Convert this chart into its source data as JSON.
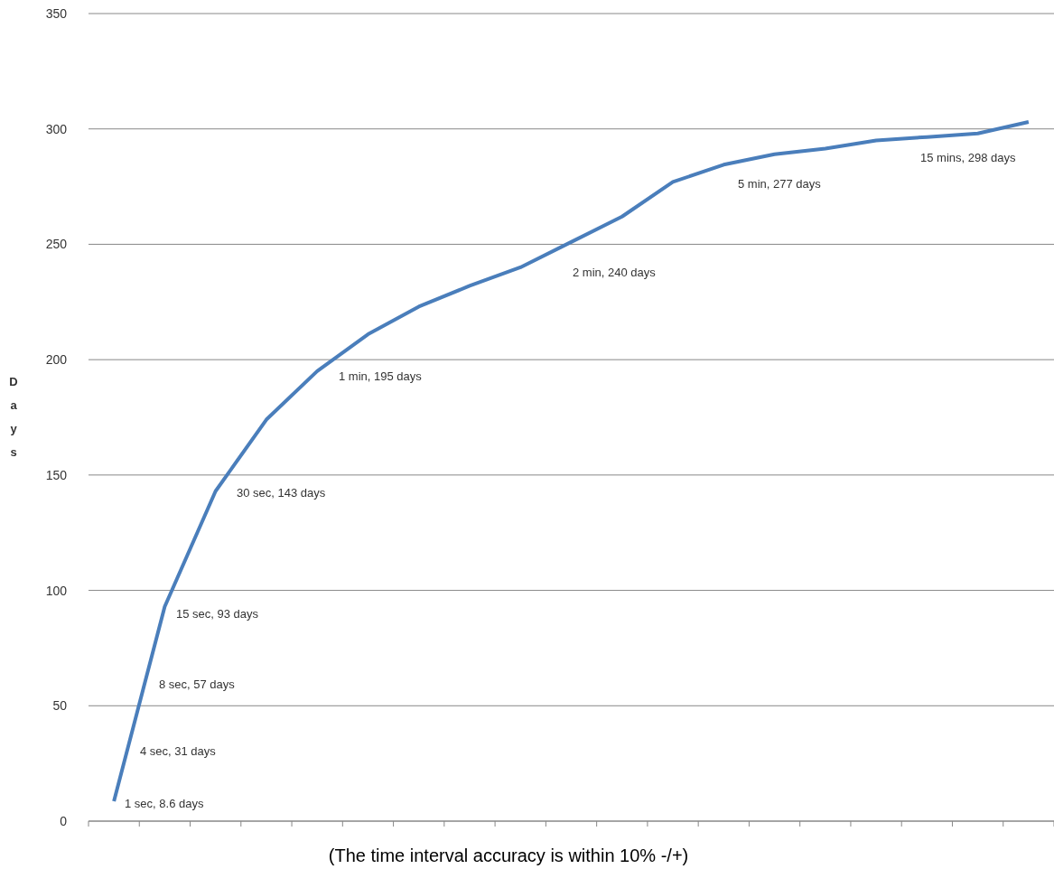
{
  "chart_data": {
    "type": "line",
    "ylabel": "Days",
    "categories": [
      null,
      null,
      null,
      null,
      null,
      null,
      null,
      null,
      null,
      null,
      null,
      null,
      null,
      null,
      null,
      null,
      null,
      null,
      null
    ],
    "series": [
      {
        "color": "#4a7ebb",
        "values": [
          8.6,
          93,
          143,
          174,
          195,
          211,
          223,
          232,
          240,
          251,
          262,
          277,
          284.5,
          289,
          291.5,
          295,
          296.5,
          298,
          303
        ]
      }
    ],
    "ylim": [
      0,
      350
    ],
    "yticks": [
      0,
      50,
      100,
      150,
      200,
      250,
      300,
      350
    ],
    "grid": "y",
    "legend": false,
    "marker": "none",
    "line_style": "solid",
    "annotations": [
      "1 sec, 8.6 days",
      "4 sec, 31 days",
      "8 sec, 57 days",
      "15 sec, 93 days",
      "30 sec, 143 days",
      "1 min, 195 days",
      "2 min, 240 days",
      "5 min, 277 days",
      "15 mins, 298 days",
      "(The time interval accuracy is within 10% -/+)"
    ]
  }
}
